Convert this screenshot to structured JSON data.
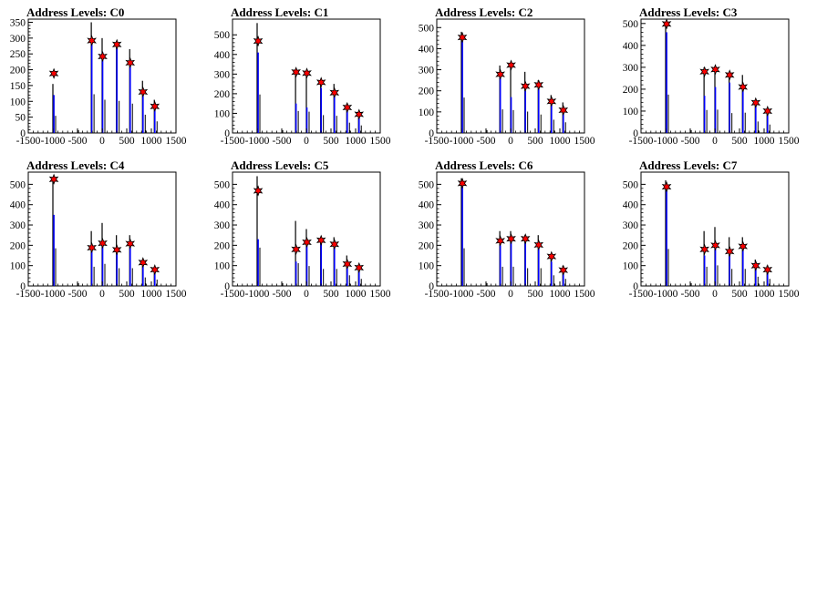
{
  "chart_data": [
    {
      "type": "bar",
      "title": "Address Levels: C0",
      "xlim": [
        -1500,
        1500
      ],
      "ylim": [
        0,
        360
      ],
      "xticks": [
        -1500,
        -1000,
        -500,
        0,
        500,
        1000,
        1500
      ],
      "yticks": [
        0,
        50,
        100,
        150,
        200,
        250,
        300,
        350
      ],
      "black_spikes": [
        [
          -1000,
          155
        ],
        [
          -220,
          350
        ],
        [
          0,
          300
        ],
        [
          290,
          290
        ],
        [
          560,
          265
        ],
        [
          820,
          165
        ],
        [
          1060,
          105
        ]
      ],
      "blue_spikes": [
        [
          -980,
          120
        ],
        [
          -210,
          300
        ],
        [
          10,
          255
        ],
        [
          300,
          290
        ],
        [
          570,
          230
        ],
        [
          830,
          130
        ],
        [
          1070,
          85
        ]
      ],
      "peak_markers": [
        [
          -980,
          188
        ],
        [
          -210,
          292
        ],
        [
          10,
          242
        ],
        [
          300,
          280
        ],
        [
          570,
          222
        ],
        [
          830,
          130
        ],
        [
          1070,
          84
        ]
      ]
    },
    {
      "type": "bar",
      "title": "Address Levels: C1",
      "xlim": [
        -1500,
        1500
      ],
      "ylim": [
        0,
        580
      ],
      "xticks": [
        -1500,
        -1000,
        -500,
        0,
        500,
        1000,
        1500
      ],
      "yticks": [
        0,
        100,
        200,
        300,
        400,
        500
      ],
      "black_spikes": [
        [
          -1000,
          560
        ],
        [
          -220,
          320
        ],
        [
          0,
          310
        ],
        [
          290,
          260
        ],
        [
          560,
          250
        ],
        [
          820,
          150
        ],
        [
          1060,
          110
        ]
      ],
      "blue_spikes": [
        [
          -980,
          410
        ],
        [
          -210,
          150
        ],
        [
          10,
          130
        ],
        [
          300,
          230
        ],
        [
          570,
          200
        ],
        [
          830,
          120
        ],
        [
          1070,
          90
        ]
      ],
      "peak_markers": [
        [
          -980,
          468
        ],
        [
          -210,
          310
        ],
        [
          10,
          305
        ],
        [
          300,
          258
        ],
        [
          570,
          205
        ],
        [
          830,
          130
        ],
        [
          1070,
          95
        ]
      ]
    },
    {
      "type": "bar",
      "title": "Address Levels: C2",
      "xlim": [
        -1500,
        1500
      ],
      "ylim": [
        0,
        540
      ],
      "xticks": [
        -1500,
        -1000,
        -500,
        0,
        500,
        1000,
        1500
      ],
      "yticks": [
        0,
        100,
        200,
        300,
        400,
        500
      ],
      "black_spikes": [
        [
          -1000,
          480
        ],
        [
          -220,
          320
        ],
        [
          0,
          310
        ],
        [
          290,
          290
        ],
        [
          560,
          250
        ],
        [
          820,
          180
        ],
        [
          1060,
          145
        ]
      ],
      "blue_spikes": [
        [
          -980,
          440
        ],
        [
          -210,
          280
        ],
        [
          10,
          170
        ],
        [
          300,
          200
        ],
        [
          570,
          210
        ],
        [
          830,
          140
        ],
        [
          1070,
          95
        ]
      ],
      "peak_markers": [
        [
          -980,
          453
        ],
        [
          -210,
          278
        ],
        [
          10,
          322
        ],
        [
          300,
          222
        ],
        [
          570,
          228
        ],
        [
          830,
          150
        ],
        [
          1070,
          108
        ]
      ]
    },
    {
      "type": "bar",
      "title": "Address Levels: C3",
      "xlim": [
        -1500,
        1500
      ],
      "ylim": [
        0,
        520
      ],
      "xticks": [
        -1500,
        -1000,
        -500,
        0,
        500,
        1000,
        1500
      ],
      "yticks": [
        0,
        100,
        200,
        300,
        400,
        500
      ],
      "black_spikes": [
        [
          -1000,
          500
        ],
        [
          -220,
          300
        ],
        [
          0,
          305
        ],
        [
          290,
          260
        ],
        [
          560,
          265
        ],
        [
          820,
          150
        ],
        [
          1060,
          110
        ]
      ],
      "blue_spikes": [
        [
          -980,
          460
        ],
        [
          -210,
          170
        ],
        [
          10,
          210
        ],
        [
          300,
          230
        ],
        [
          570,
          210
        ],
        [
          830,
          130
        ],
        [
          1070,
          90
        ]
      ],
      "peak_markers": [
        [
          -980,
          498
        ],
        [
          -210,
          280
        ],
        [
          10,
          290
        ],
        [
          300,
          265
        ],
        [
          570,
          210
        ],
        [
          830,
          138
        ],
        [
          1070,
          100
        ]
      ]
    },
    {
      "type": "bar",
      "title": "Address Levels: C4",
      "xlim": [
        -1500,
        1500
      ],
      "ylim": [
        0,
        560
      ],
      "xticks": [
        -1500,
        -1000,
        -500,
        0,
        500,
        1000,
        1500
      ],
      "yticks": [
        0,
        100,
        200,
        300,
        400,
        500
      ],
      "black_spikes": [
        [
          -1000,
          530
        ],
        [
          -220,
          270
        ],
        [
          0,
          310
        ],
        [
          290,
          250
        ],
        [
          560,
          250
        ],
        [
          820,
          120
        ],
        [
          1060,
          90
        ]
      ],
      "blue_spikes": [
        [
          -980,
          350
        ],
        [
          -210,
          180
        ],
        [
          10,
          200
        ],
        [
          300,
          170
        ],
        [
          570,
          190
        ],
        [
          830,
          110
        ],
        [
          1070,
          70
        ]
      ],
      "peak_markers": [
        [
          -980,
          525
        ],
        [
          -210,
          188
        ],
        [
          10,
          210
        ],
        [
          300,
          178
        ],
        [
          570,
          208
        ],
        [
          830,
          115
        ],
        [
          1070,
          80
        ]
      ]
    },
    {
      "type": "bar",
      "title": "Address Levels: C5",
      "xlim": [
        -1500,
        1500
      ],
      "ylim": [
        0,
        560
      ],
      "xticks": [
        -1500,
        -1000,
        -500,
        0,
        500,
        1000,
        1500
      ],
      "yticks": [
        0,
        100,
        200,
        300,
        400,
        500
      ],
      "black_spikes": [
        [
          -1000,
          540
        ],
        [
          -220,
          320
        ],
        [
          0,
          280
        ],
        [
          290,
          240
        ],
        [
          560,
          240
        ],
        [
          820,
          150
        ],
        [
          1060,
          100
        ]
      ],
      "blue_spikes": [
        [
          -980,
          230
        ],
        [
          -210,
          120
        ],
        [
          10,
          200
        ],
        [
          300,
          210
        ],
        [
          570,
          200
        ],
        [
          830,
          110
        ],
        [
          1070,
          90
        ]
      ],
      "peak_markers": [
        [
          -980,
          468
        ],
        [
          -210,
          180
        ],
        [
          10,
          215
        ],
        [
          300,
          225
        ],
        [
          570,
          205
        ],
        [
          830,
          108
        ],
        [
          1070,
          90
        ]
      ]
    },
    {
      "type": "bar",
      "title": "Address Levels: C6",
      "xlim": [
        -1500,
        1500
      ],
      "ylim": [
        0,
        560
      ],
      "xticks": [
        -1500,
        -1000,
        -500,
        0,
        500,
        1000,
        1500
      ],
      "yticks": [
        0,
        100,
        200,
        300,
        400,
        500
      ],
      "black_spikes": [
        [
          -1000,
          530
        ],
        [
          -220,
          270
        ],
        [
          0,
          270
        ],
        [
          290,
          250
        ],
        [
          560,
          250
        ],
        [
          820,
          150
        ],
        [
          1060,
          100
        ]
      ],
      "blue_spikes": [
        [
          -980,
          500
        ],
        [
          -210,
          200
        ],
        [
          10,
          220
        ],
        [
          300,
          220
        ],
        [
          570,
          210
        ],
        [
          830,
          120
        ],
        [
          1070,
          70
        ]
      ],
      "peak_markers": [
        [
          -980,
          505
        ],
        [
          -210,
          222
        ],
        [
          10,
          232
        ],
        [
          300,
          232
        ],
        [
          570,
          202
        ],
        [
          830,
          145
        ],
        [
          1070,
          78
        ]
      ]
    },
    {
      "type": "bar",
      "title": "Address Levels: C7",
      "xlim": [
        -1500,
        1500
      ],
      "ylim": [
        0,
        560
      ],
      "xticks": [
        -1500,
        -1000,
        -500,
        0,
        500,
        1000,
        1500
      ],
      "yticks": [
        0,
        100,
        200,
        300,
        400,
        500
      ],
      "black_spikes": [
        [
          -1000,
          520
        ],
        [
          -220,
          270
        ],
        [
          0,
          290
        ],
        [
          290,
          240
        ],
        [
          560,
          240
        ],
        [
          820,
          130
        ],
        [
          1060,
          100
        ]
      ],
      "blue_spikes": [
        [
          -980,
          480
        ],
        [
          -210,
          150
        ],
        [
          10,
          190
        ],
        [
          300,
          160
        ],
        [
          570,
          190
        ],
        [
          830,
          90
        ],
        [
          1070,
          70
        ]
      ],
      "peak_markers": [
        [
          -980,
          488
        ],
        [
          -210,
          180
        ],
        [
          10,
          200
        ],
        [
          300,
          170
        ],
        [
          570,
          195
        ],
        [
          830,
          100
        ],
        [
          1070,
          80
        ]
      ]
    }
  ]
}
